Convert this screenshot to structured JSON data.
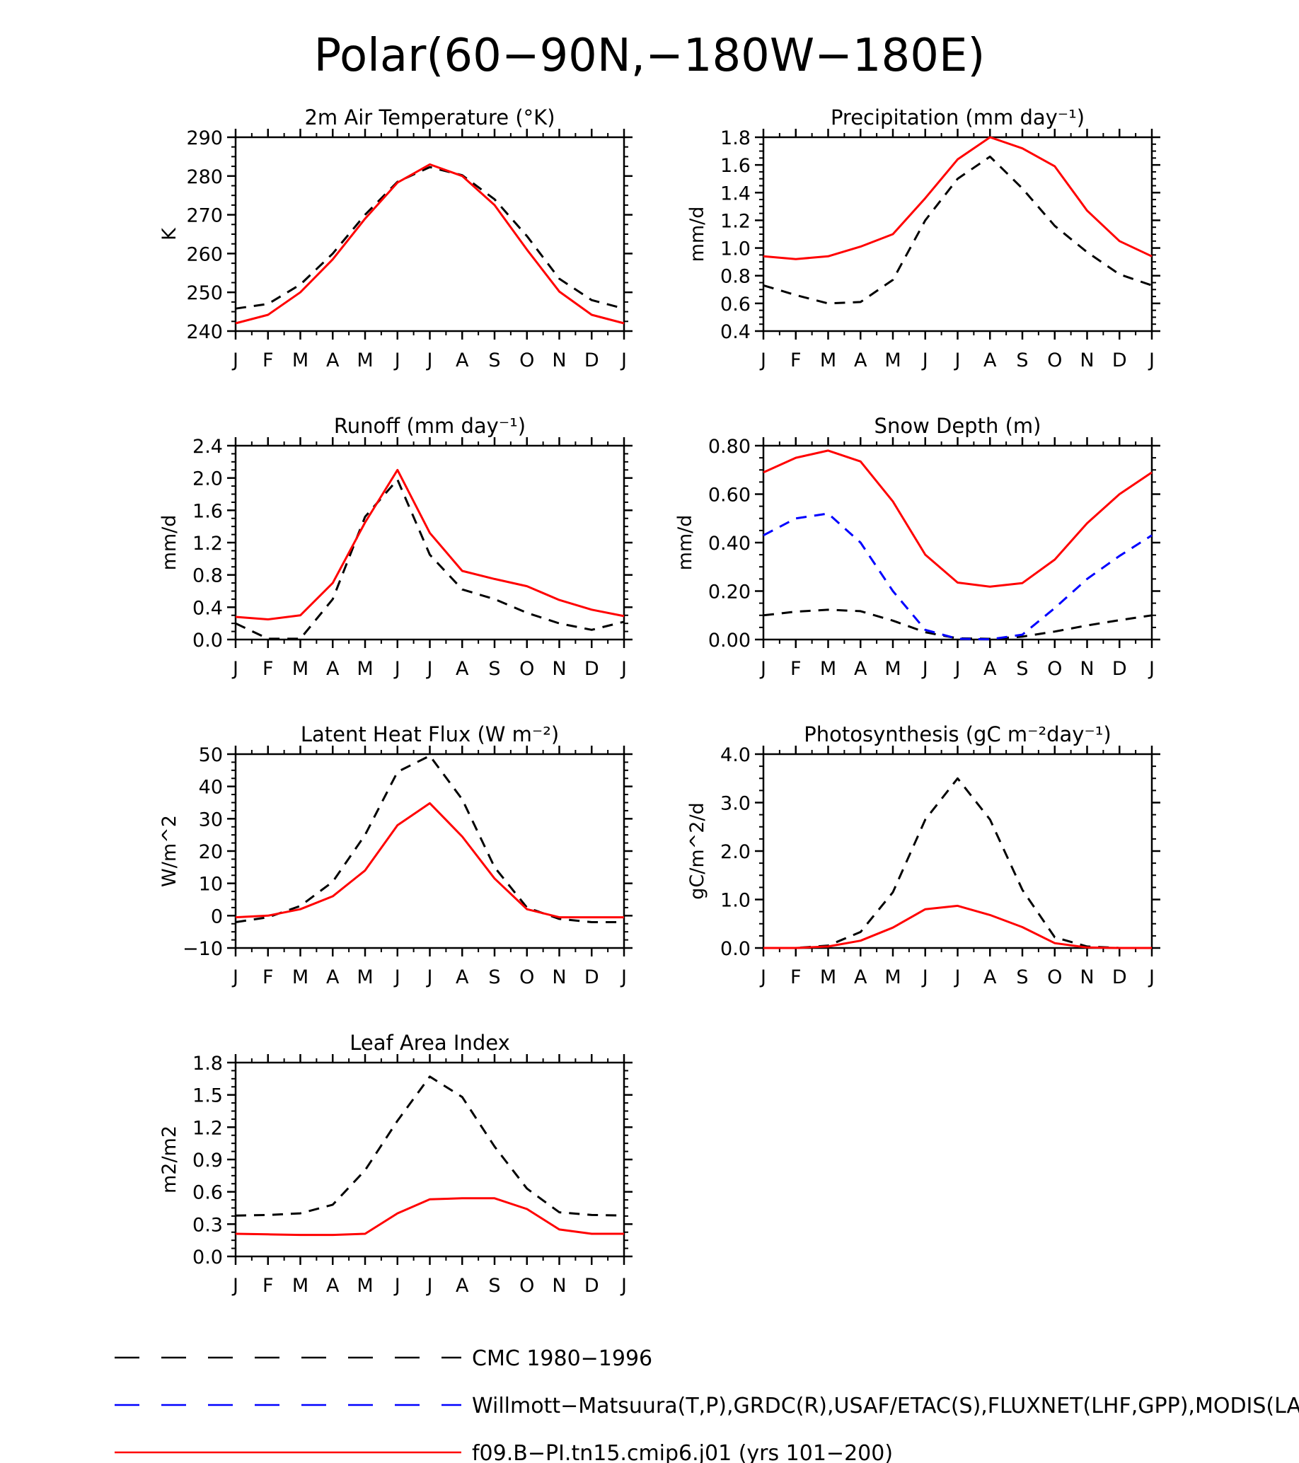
{
  "figure": {
    "title": "Polar(60−90N,−180W−180E)"
  },
  "legend": [
    {
      "label": "CMC 1980−1996",
      "color": "#000000",
      "style": "dashed"
    },
    {
      "label": "Willmott−Matsuura(T,P),GRDC(R),USAF/ETAC(S),FLUXNET(LHF,GPP),MODIS(LAI)",
      "color": "#0000ff",
      "style": "dashed"
    },
    {
      "label": "f09.B−PI.tn15.cmip6.j01 (yrs 101−200)",
      "color": "#ff0000",
      "style": "solid"
    }
  ],
  "chart_data": [
    {
      "type": "line",
      "title": "2m Air Temperature (°K)",
      "ylabel": "K",
      "x": [
        "J",
        "F",
        "M",
        "A",
        "M",
        "J",
        "J",
        "A",
        "S",
        "O",
        "N",
        "D",
        "J"
      ],
      "ylim": [
        240,
        290
      ],
      "yticks": [
        "240",
        "250",
        "260",
        "270",
        "280",
        "290"
      ],
      "series": [
        {
          "color": "#000000",
          "style": "dashed",
          "values": [
            245.8,
            247.0,
            252.0,
            260.0,
            270.0,
            278.5,
            282.3,
            280.2,
            274.0,
            264.5,
            253.5,
            248.0,
            245.8
          ]
        },
        {
          "color": "#ff0000",
          "style": "solid",
          "values": [
            242.0,
            244.2,
            250.0,
            258.5,
            269.0,
            278.3,
            283.0,
            280.0,
            272.5,
            261.0,
            250.2,
            244.2,
            242.0
          ]
        }
      ]
    },
    {
      "type": "line",
      "title": "Precipitation (mm day⁻¹)",
      "ylabel": "mm/d",
      "x": [
        "J",
        "F",
        "M",
        "A",
        "M",
        "J",
        "J",
        "A",
        "S",
        "O",
        "N",
        "D",
        "J"
      ],
      "ylim": [
        0.4,
        1.8
      ],
      "yticks": [
        "0.4",
        "0.6",
        "0.8",
        "1.0",
        "1.2",
        "1.4",
        "1.6",
        "1.8"
      ],
      "series": [
        {
          "color": "#000000",
          "style": "dashed",
          "values": [
            0.73,
            0.66,
            0.6,
            0.61,
            0.77,
            1.2,
            1.5,
            1.66,
            1.43,
            1.16,
            0.97,
            0.81,
            0.73
          ]
        },
        {
          "color": "#ff0000",
          "style": "solid",
          "values": [
            0.94,
            0.92,
            0.94,
            1.01,
            1.1,
            1.36,
            1.64,
            1.8,
            1.72,
            1.59,
            1.27,
            1.05,
            0.94
          ]
        }
      ]
    },
    {
      "type": "line",
      "title": "Runoff (mm day⁻¹)",
      "ylabel": "mm/d",
      "x": [
        "J",
        "F",
        "M",
        "A",
        "M",
        "J",
        "J",
        "A",
        "S",
        "O",
        "N",
        "D",
        "J"
      ],
      "ylim": [
        0,
        2.4
      ],
      "yticks": [
        "0.0",
        "0.4",
        "0.8",
        "1.2",
        "1.6",
        "2.0",
        "2.4"
      ],
      "series": [
        {
          "color": "#000000",
          "style": "dashed",
          "values": [
            0.2,
            0.01,
            0.01,
            0.5,
            1.52,
            1.98,
            1.05,
            0.62,
            0.5,
            0.33,
            0.2,
            0.12,
            0.22
          ]
        },
        {
          "color": "#ff0000",
          "style": "solid",
          "values": [
            0.28,
            0.25,
            0.3,
            0.7,
            1.45,
            2.1,
            1.32,
            0.85,
            0.75,
            0.66,
            0.49,
            0.37,
            0.29
          ]
        }
      ]
    },
    {
      "type": "line",
      "title": "Snow Depth (m)",
      "ylabel": "mm/d",
      "x": [
        "J",
        "F",
        "M",
        "A",
        "M",
        "J",
        "J",
        "A",
        "S",
        "O",
        "N",
        "D",
        "J"
      ],
      "ylim": [
        0,
        0.8
      ],
      "yticks": [
        "0.00",
        "0.20",
        "0.40",
        "0.60",
        "0.80"
      ],
      "series": [
        {
          "color": "#000000",
          "style": "dashed",
          "values": [
            0.1,
            0.115,
            0.123,
            0.117,
            0.078,
            0.03,
            0.005,
            0.003,
            0.012,
            0.033,
            0.058,
            0.08,
            0.1
          ]
        },
        {
          "color": "#0000ff",
          "style": "dashed",
          "values": [
            0.43,
            0.5,
            0.52,
            0.4,
            0.2,
            0.04,
            0.003,
            0.001,
            0.02,
            0.13,
            0.25,
            0.345,
            0.43
          ]
        },
        {
          "color": "#ff0000",
          "style": "solid",
          "values": [
            0.69,
            0.75,
            0.78,
            0.735,
            0.57,
            0.35,
            0.235,
            0.218,
            0.233,
            0.33,
            0.48,
            0.6,
            0.69
          ]
        }
      ]
    },
    {
      "type": "line",
      "title": "Latent Heat Flux (W m⁻²)",
      "ylabel": "W/m^2",
      "x": [
        "J",
        "F",
        "M",
        "A",
        "M",
        "J",
        "J",
        "A",
        "S",
        "O",
        "N",
        "D",
        "J"
      ],
      "ylim": [
        -10,
        50
      ],
      "yticks": [
        "−10",
        "0",
        "10",
        "20",
        "30",
        "40",
        "50"
      ],
      "series": [
        {
          "color": "#000000",
          "style": "dashed",
          "values": [
            -2,
            -0.5,
            3,
            10.5,
            25,
            44.5,
            49.5,
            36,
            15,
            2.5,
            -1,
            -2,
            -2
          ]
        },
        {
          "color": "#ff0000",
          "style": "solid",
          "values": [
            -0.5,
            0,
            2,
            6,
            14,
            28,
            34.8,
            24.5,
            11.5,
            2,
            -0.5,
            -0.5,
            -0.5
          ]
        }
      ]
    },
    {
      "type": "line",
      "title": "Photosynthesis (gC m⁻²day⁻¹)",
      "ylabel": "gC/m^2/d",
      "x": [
        "J",
        "F",
        "M",
        "A",
        "M",
        "J",
        "J",
        "A",
        "S",
        "O",
        "N",
        "D",
        "J"
      ],
      "ylim": [
        0,
        4
      ],
      "yticks": [
        "0.0",
        "1.0",
        "2.0",
        "3.0",
        "4.0"
      ],
      "series": [
        {
          "color": "#000000",
          "style": "dashed",
          "values": [
            0.0,
            0.0,
            0.05,
            0.33,
            1.15,
            2.65,
            3.5,
            2.65,
            1.2,
            0.22,
            0.03,
            0.0,
            0.0
          ]
        },
        {
          "color": "#ff0000",
          "style": "solid",
          "values": [
            0.0,
            0.0,
            0.03,
            0.15,
            0.42,
            0.8,
            0.87,
            0.68,
            0.43,
            0.1,
            0.01,
            0.0,
            0.0
          ]
        }
      ]
    },
    {
      "type": "line",
      "title": "Leaf Area Index",
      "ylabel": "m2/m2",
      "x": [
        "J",
        "F",
        "M",
        "A",
        "M",
        "J",
        "J",
        "A",
        "S",
        "O",
        "N",
        "D",
        "J"
      ],
      "ylim": [
        0,
        1.8
      ],
      "yticks": [
        "0.0",
        "0.3",
        "0.6",
        "0.9",
        "1.2",
        "1.5",
        "1.8"
      ],
      "series": [
        {
          "color": "#000000",
          "style": "dashed",
          "values": [
            0.38,
            0.385,
            0.4,
            0.48,
            0.8,
            1.26,
            1.67,
            1.48,
            1.02,
            0.63,
            0.41,
            0.385,
            0.38
          ]
        },
        {
          "color": "#ff0000",
          "style": "solid",
          "values": [
            0.21,
            0.205,
            0.2,
            0.2,
            0.21,
            0.4,
            0.53,
            0.54,
            0.54,
            0.44,
            0.25,
            0.21,
            0.21
          ]
        }
      ]
    }
  ]
}
